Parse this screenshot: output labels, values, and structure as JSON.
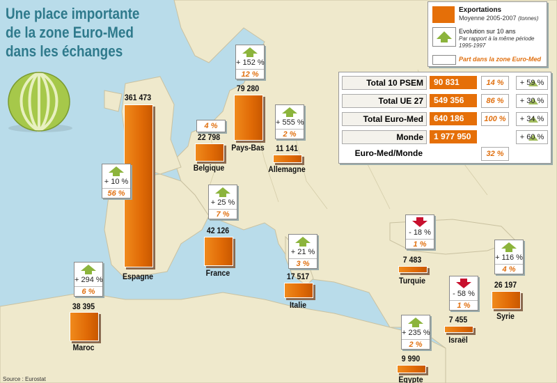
{
  "title": {
    "line1": "Une place importante",
    "line2": "de la zone Euro-Med",
    "line3": "dans les échanges"
  },
  "legend": {
    "exports_label": "Exportations",
    "exports_sub": "Moyenne 2005-2007",
    "exports_unit": "(tonnes)",
    "evolution_label": "Evolution sur 10 ans",
    "evolution_sub": "Par rapport à la même période 1995-1997",
    "share_label": "Part dans la zone Euro-Med"
  },
  "summary": [
    {
      "label": "Total 10 PSEM",
      "value": "90 831",
      "share": "14 %",
      "evolution": "+ 59 %"
    },
    {
      "label": "Total UE 27",
      "value": "549 356",
      "share": "86 %",
      "evolution": "+ 30 %"
    },
    {
      "label": "Total Euro-Med",
      "value": "640 186",
      "share": "100 %",
      "evolution": "+ 34 %"
    },
    {
      "label": "Monde",
      "value": "1 977 950",
      "share": "",
      "evolution": "+ 60 %"
    },
    {
      "label": "Euro-Med/Monde",
      "value": "",
      "share": "32 %",
      "evolution": ""
    }
  ],
  "countries": [
    {
      "name": "Espagne",
      "value": "361 473",
      "evolution": "+ 10 %",
      "share": "56 %",
      "trend": "up"
    },
    {
      "name": "Pays-Bas",
      "value": "79 280",
      "evolution": "+ 152 %",
      "share": "12 %",
      "trend": "up"
    },
    {
      "name": "Belgique",
      "value": "22 798",
      "evolution": "",
      "share": "4 %",
      "trend": "none"
    },
    {
      "name": "Allemagne",
      "value": "11 141",
      "evolution": "+ 555 %",
      "share": "2 %",
      "trend": "up"
    },
    {
      "name": "France",
      "value": "42 126",
      "evolution": "+ 25 %",
      "share": "7 %",
      "trend": "up"
    },
    {
      "name": "Italie",
      "value": "17 517",
      "evolution": "+ 21 %",
      "share": "3 %",
      "trend": "up"
    },
    {
      "name": "Maroc",
      "value": "38 395",
      "evolution": "+ 294 %",
      "share": "6 %",
      "trend": "up"
    },
    {
      "name": "Turquie",
      "value": "7 483",
      "evolution": "- 18 %",
      "share": "1 %",
      "trend": "down"
    },
    {
      "name": "Israël",
      "value": "7 455",
      "evolution": "- 58 %",
      "share": "1 %",
      "trend": "down"
    },
    {
      "name": "Syrie",
      "value": "26 197",
      "evolution": "+ 116 %",
      "share": "4 %",
      "trend": "up"
    },
    {
      "name": "Egypte",
      "value": "9 990",
      "evolution": "+ 235 %",
      "share": "2 %",
      "trend": "up"
    }
  ],
  "colors": {
    "sea": "#b9dcea",
    "land": "#efe9cc",
    "bar": "#e56f08",
    "up_arrow": "#8cb43c",
    "down_arrow": "#c8102e",
    "title": "#2f7a8c"
  },
  "icons": {
    "emblem": "melon-icon",
    "up": "arrow-up-icon",
    "down": "arrow-down-icon"
  },
  "source": "Source : Eurostat"
}
